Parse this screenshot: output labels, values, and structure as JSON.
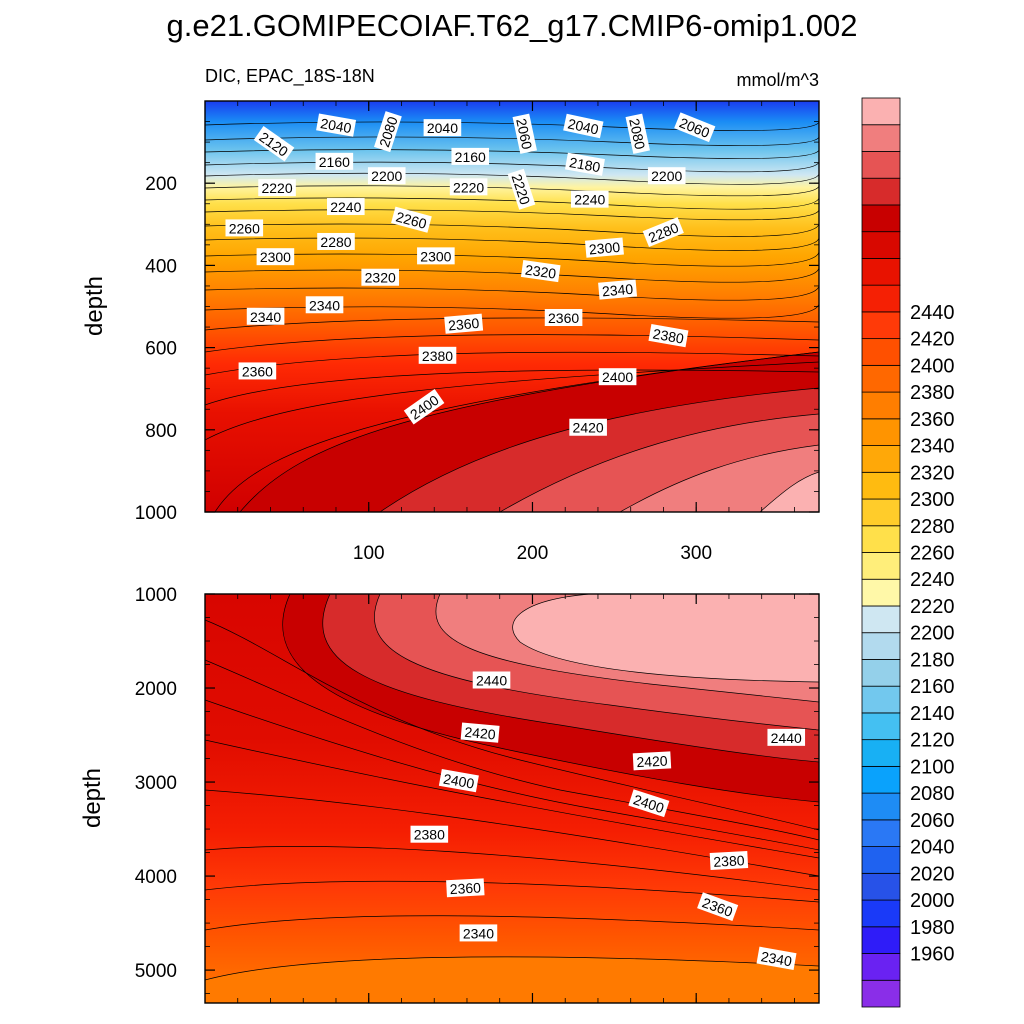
{
  "title": "g.e21.GOMIPECOIAF.T62_g17.CMIP6-omip1.002",
  "subtitle_left": "DIC, EPAC_18S-18N",
  "subtitle_right": "mmol/m^3",
  "chart_data": [
    {
      "type": "contour",
      "panel": "upper",
      "variable": "DIC",
      "region": "EPAC_18S-18N",
      "units": "mmol/m^3",
      "ylabel": "depth",
      "xlim": [
        0,
        375
      ],
      "ylim": [
        0,
        1000
      ],
      "y_inverted": true,
      "xticks": [
        100,
        200,
        300
      ],
      "yticks": [
        200,
        400,
        600,
        800,
        1000
      ],
      "labels": [
        {
          "value": "2040",
          "x": 80,
          "y": 60,
          "angle": 10
        },
        {
          "value": "2080",
          "x": 112,
          "y": 75,
          "angle": -72
        },
        {
          "value": "2040",
          "x": 145,
          "y": 66,
          "angle": 0
        },
        {
          "value": "2060",
          "x": 195,
          "y": 80,
          "angle": 78
        },
        {
          "value": "2040",
          "x": 231,
          "y": 62,
          "angle": 12
        },
        {
          "value": "2080",
          "x": 264,
          "y": 80,
          "angle": 78
        },
        {
          "value": "2060",
          "x": 299,
          "y": 65,
          "angle": 22
        },
        {
          "value": "2120",
          "x": 42,
          "y": 105,
          "angle": 35
        },
        {
          "value": "2160",
          "x": 79,
          "y": 148,
          "angle": 0
        },
        {
          "value": "2160",
          "x": 162,
          "y": 136,
          "angle": 0
        },
        {
          "value": "2180",
          "x": 232,
          "y": 155,
          "angle": 10
        },
        {
          "value": "2200",
          "x": 111,
          "y": 183,
          "angle": 0
        },
        {
          "value": "2200",
          "x": 282,
          "y": 183,
          "angle": 0
        },
        {
          "value": "2220",
          "x": 44,
          "y": 212,
          "angle": 0
        },
        {
          "value": "2220",
          "x": 161,
          "y": 210,
          "angle": 0
        },
        {
          "value": "2220",
          "x": 193,
          "y": 215,
          "angle": 72
        },
        {
          "value": "2240",
          "x": 86,
          "y": 258,
          "angle": 0
        },
        {
          "value": "2240",
          "x": 235,
          "y": 240,
          "angle": 0
        },
        {
          "value": "2260",
          "x": 24,
          "y": 310,
          "angle": 0
        },
        {
          "value": "2260",
          "x": 126,
          "y": 290,
          "angle": 15
        },
        {
          "value": "2280",
          "x": 80,
          "y": 343,
          "angle": 0
        },
        {
          "value": "2280",
          "x": 280,
          "y": 320,
          "angle": -22
        },
        {
          "value": "2300",
          "x": 43,
          "y": 380,
          "angle": 0
        },
        {
          "value": "2300",
          "x": 141,
          "y": 378,
          "angle": 0
        },
        {
          "value": "2300",
          "x": 244,
          "y": 358,
          "angle": -5
        },
        {
          "value": "2320",
          "x": 107,
          "y": 430,
          "angle": 0
        },
        {
          "value": "2320",
          "x": 205,
          "y": 415,
          "angle": 8
        },
        {
          "value": "2340",
          "x": 73,
          "y": 497,
          "angle": 0
        },
        {
          "value": "2340",
          "x": 252,
          "y": 460,
          "angle": -5
        },
        {
          "value": "2340",
          "x": 37,
          "y": 525,
          "angle": 0
        },
        {
          "value": "2360",
          "x": 158,
          "y": 543,
          "angle": -5
        },
        {
          "value": "2360",
          "x": 219,
          "y": 528,
          "angle": 0
        },
        {
          "value": "2380",
          "x": 283,
          "y": 572,
          "angle": 10
        },
        {
          "value": "2380",
          "x": 142,
          "y": 620,
          "angle": 0
        },
        {
          "value": "2360",
          "x": 32,
          "y": 658,
          "angle": 0
        },
        {
          "value": "2400",
          "x": 252,
          "y": 672,
          "angle": 0
        },
        {
          "value": "2400",
          "x": 134,
          "y": 745,
          "angle": -35
        },
        {
          "value": "2420",
          "x": 234,
          "y": 795,
          "angle": 0
        }
      ]
    },
    {
      "type": "contour",
      "panel": "lower",
      "variable": "DIC",
      "units": "mmol/m^3",
      "ylabel": "depth",
      "xlim": [
        0,
        375
      ],
      "ylim": [
        1000,
        5350
      ],
      "y_inverted": true,
      "yticks": [
        1000,
        2000,
        3000,
        4000,
        5000
      ],
      "labels": [
        {
          "value": "2440",
          "x": 175,
          "y": 1920,
          "angle": 0
        },
        {
          "value": "2440",
          "x": 355,
          "y": 2530,
          "angle": 0
        },
        {
          "value": "2420",
          "x": 168,
          "y": 2480,
          "angle": 5
        },
        {
          "value": "2420",
          "x": 273,
          "y": 2780,
          "angle": -3
        },
        {
          "value": "2400",
          "x": 155,
          "y": 2990,
          "angle": 10
        },
        {
          "value": "2400",
          "x": 271,
          "y": 3230,
          "angle": 18
        },
        {
          "value": "2380",
          "x": 137,
          "y": 3560,
          "angle": 0
        },
        {
          "value": "2380",
          "x": 320,
          "y": 3840,
          "angle": -3
        },
        {
          "value": "2360",
          "x": 159,
          "y": 4130,
          "angle": -3
        },
        {
          "value": "2360",
          "x": 313,
          "y": 4330,
          "angle": 20
        },
        {
          "value": "2340",
          "x": 167,
          "y": 4610,
          "angle": 0
        },
        {
          "value": "2340",
          "x": 349,
          "y": 4880,
          "angle": 10
        }
      ]
    }
  ],
  "colorbar": {
    "levels": [
      1960,
      1980,
      2000,
      2020,
      2040,
      2060,
      2080,
      2100,
      2120,
      2140,
      2160,
      2180,
      2200,
      2220,
      2240,
      2260,
      2280,
      2300,
      2320,
      2340,
      2360,
      2380,
      2400,
      2420,
      2440
    ],
    "colors": [
      "#8a2ee8",
      "#6a22f2",
      "#2f1cf8",
      "#1a3af8",
      "#2752e8",
      "#1f62f0",
      "#2a78f5",
      "#1e8cf5",
      "#0aa2fc",
      "#18b0f4",
      "#44c0f2",
      "#72c8ee",
      "#94d0ea",
      "#b2daee",
      "#cfe7f2",
      "#fff8a8",
      "#ffee7a",
      "#ffe04a",
      "#ffcc2a",
      "#ffbb10",
      "#ffa808",
      "#ff9400",
      "#ff7e00",
      "#ff6800",
      "#ff5000",
      "#ff3a08",
      "#f52004",
      "#e81200",
      "#d80800",
      "#c80000",
      "#d72b2b",
      "#e65454",
      "#f07e7e",
      "#fbb1b1"
    ]
  }
}
